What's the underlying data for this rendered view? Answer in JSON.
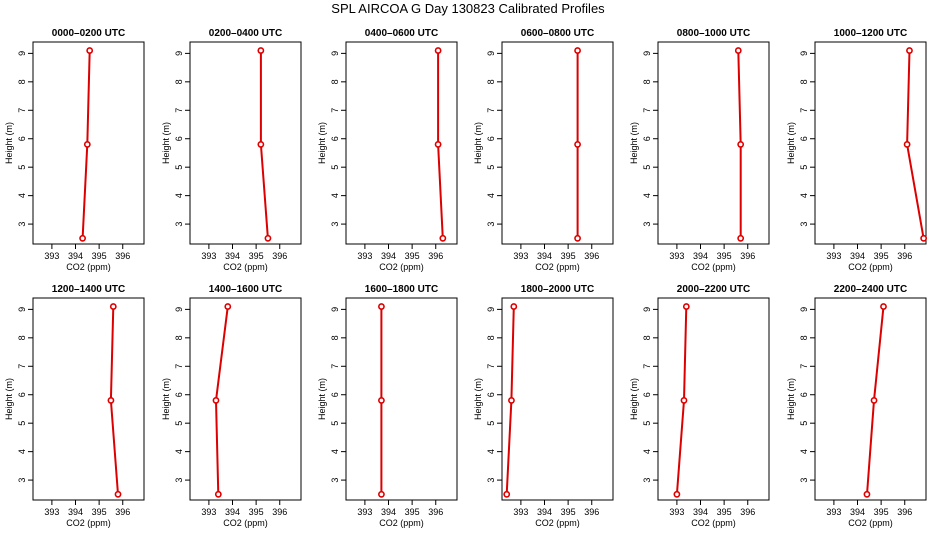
{
  "figure_title": "SPL AIRCOA G  Day 130823  Calibrated Profiles",
  "chart_data": {
    "type": "line",
    "xlabel": "CO2 (ppm)",
    "ylabel": "Height (m)",
    "xlim": [
      392.2,
      396.9
    ],
    "ylim": [
      2.3,
      9.4
    ],
    "xticks": [
      393,
      394,
      395,
      396
    ],
    "yticks": [
      3,
      4,
      5,
      6,
      7,
      8,
      9
    ],
    "heights": [
      2.5,
      5.8,
      9.1
    ],
    "line_color": "#dd0000",
    "marker_color": "#dd0000",
    "grid": false,
    "panels": [
      {
        "title": "0000–0200 UTC",
        "co2": [
          394.3,
          394.5,
          394.6
        ]
      },
      {
        "title": "0200–0400 UTC",
        "co2": [
          395.5,
          395.2,
          395.2
        ]
      },
      {
        "title": "0400–0600 UTC",
        "co2": [
          396.3,
          396.1,
          396.1
        ]
      },
      {
        "title": "0600–0800 UTC",
        "co2": [
          395.4,
          395.4,
          395.4
        ]
      },
      {
        "title": "0800–1000 UTC",
        "co2": [
          395.7,
          395.7,
          395.6
        ]
      },
      {
        "title": "1000–1200 UTC",
        "co2": [
          396.8,
          396.1,
          396.2
        ]
      },
      {
        "title": "1200–1400 UTC",
        "co2": [
          395.8,
          395.5,
          395.6
        ]
      },
      {
        "title": "1400–1600 UTC",
        "co2": [
          393.4,
          393.3,
          393.8
        ]
      },
      {
        "title": "1600–1800 UTC",
        "co2": [
          393.7,
          393.7,
          393.7
        ]
      },
      {
        "title": "1800–2000 UTC",
        "co2": [
          392.4,
          392.6,
          392.7
        ]
      },
      {
        "title": "2000–2200 UTC",
        "co2": [
          393.0,
          393.3,
          393.4
        ]
      },
      {
        "title": "2200–2400 UTC",
        "co2": [
          394.4,
          394.7,
          395.1
        ]
      }
    ]
  }
}
